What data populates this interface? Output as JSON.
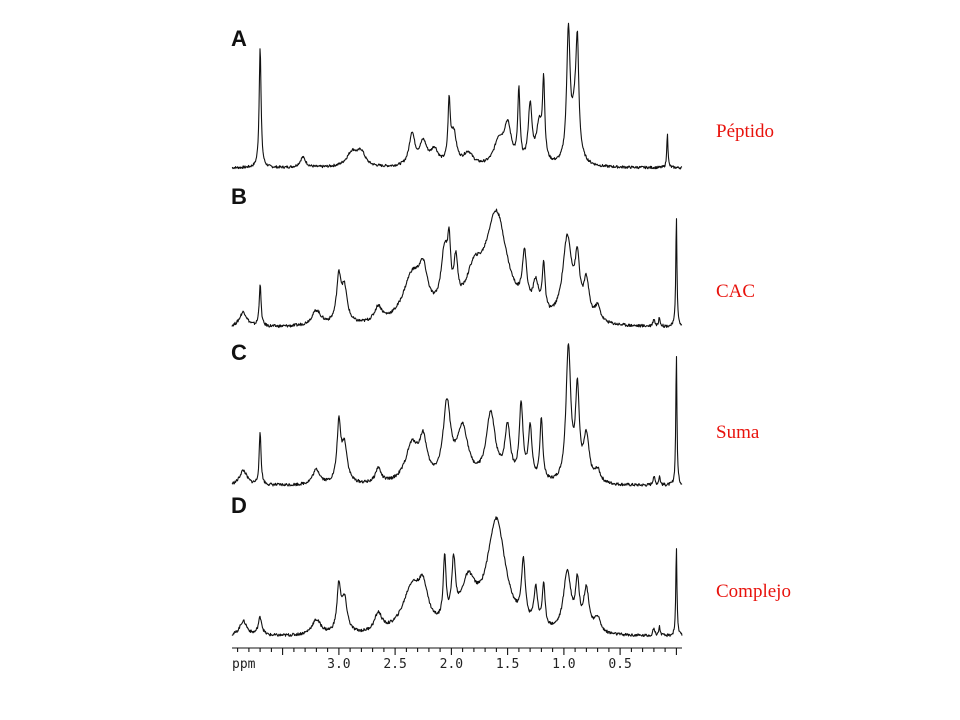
{
  "chart_data": {
    "type": "line",
    "x_unit": "ppm",
    "x_tick_labels": [
      "ppm",
      "3.0",
      "2.5",
      "2.0",
      "1.5",
      "1.0",
      "0.5"
    ],
    "x_ticks": [
      3.0,
      2.5,
      2.0,
      1.5,
      1.0,
      0.5
    ],
    "xlim": [
      3.95,
      -0.05
    ],
    "x_reversed": true,
    "grid": false,
    "panels": [
      {
        "letter": "A",
        "label": "Péptido",
        "peaks": [
          {
            "ppm": 3.7,
            "height": 0.95,
            "width": 0.01
          },
          {
            "ppm": 3.32,
            "height": 0.08,
            "width": 0.03
          },
          {
            "ppm": 2.88,
            "height": 0.12,
            "width": 0.06
          },
          {
            "ppm": 2.8,
            "height": 0.1,
            "width": 0.04
          },
          {
            "ppm": 2.35,
            "height": 0.25,
            "width": 0.03
          },
          {
            "ppm": 2.25,
            "height": 0.18,
            "width": 0.04
          },
          {
            "ppm": 2.15,
            "height": 0.12,
            "width": 0.04
          },
          {
            "ppm": 2.02,
            "height": 0.45,
            "width": 0.012
          },
          {
            "ppm": 1.98,
            "height": 0.25,
            "width": 0.03
          },
          {
            "ppm": 1.85,
            "height": 0.1,
            "width": 0.05
          },
          {
            "ppm": 1.58,
            "height": 0.18,
            "width": 0.05
          },
          {
            "ppm": 1.5,
            "height": 0.3,
            "width": 0.04
          },
          {
            "ppm": 1.4,
            "height": 0.55,
            "width": 0.012
          },
          {
            "ppm": 1.3,
            "height": 0.45,
            "width": 0.02
          },
          {
            "ppm": 1.22,
            "height": 0.3,
            "width": 0.03
          },
          {
            "ppm": 1.18,
            "height": 0.6,
            "width": 0.012
          },
          {
            "ppm": 0.96,
            "height": 1.0,
            "width": 0.018
          },
          {
            "ppm": 0.88,
            "height": 0.72,
            "width": 0.014
          },
          {
            "ppm": 0.9,
            "height": 0.4,
            "width": 0.035
          },
          {
            "ppm": 0.08,
            "height": 0.28,
            "width": 0.006
          }
        ],
        "baseline_slope": 0.0
      },
      {
        "letter": "B",
        "label": "CAC",
        "peaks": [
          {
            "ppm": 3.7,
            "height": 0.28,
            "width": 0.01
          },
          {
            "ppm": 3.85,
            "height": 0.1,
            "width": 0.04
          },
          {
            "ppm": 3.2,
            "height": 0.1,
            "width": 0.05
          },
          {
            "ppm": 3.0,
            "height": 0.3,
            "width": 0.025
          },
          {
            "ppm": 2.95,
            "height": 0.22,
            "width": 0.03
          },
          {
            "ppm": 2.65,
            "height": 0.1,
            "width": 0.04
          },
          {
            "ppm": 2.35,
            "height": 0.3,
            "width": 0.1
          },
          {
            "ppm": 2.25,
            "height": 0.25,
            "width": 0.05
          },
          {
            "ppm": 2.06,
            "height": 0.4,
            "width": 0.04
          },
          {
            "ppm": 2.02,
            "height": 0.32,
            "width": 0.015
          },
          {
            "ppm": 1.96,
            "height": 0.28,
            "width": 0.02
          },
          {
            "ppm": 1.8,
            "height": 0.25,
            "width": 0.09
          },
          {
            "ppm": 1.6,
            "height": 0.72,
            "width": 0.12
          },
          {
            "ppm": 1.35,
            "height": 0.35,
            "width": 0.025
          },
          {
            "ppm": 1.25,
            "height": 0.2,
            "width": 0.03
          },
          {
            "ppm": 1.18,
            "height": 0.32,
            "width": 0.015
          },
          {
            "ppm": 0.97,
            "height": 0.55,
            "width": 0.05
          },
          {
            "ppm": 0.88,
            "height": 0.35,
            "width": 0.025
          },
          {
            "ppm": 0.8,
            "height": 0.25,
            "width": 0.03
          },
          {
            "ppm": 0.7,
            "height": 0.1,
            "width": 0.03
          },
          {
            "ppm": 0.2,
            "height": 0.05,
            "width": 0.01
          },
          {
            "ppm": 0.15,
            "height": 0.06,
            "width": 0.008
          },
          {
            "ppm": 0.0,
            "height": 0.75,
            "width": 0.006
          }
        ],
        "baseline_slope": 0.0
      },
      {
        "letter": "C",
        "label": "Suma",
        "peaks": [
          {
            "ppm": 3.7,
            "height": 0.35,
            "width": 0.01
          },
          {
            "ppm": 3.85,
            "height": 0.1,
            "width": 0.04
          },
          {
            "ppm": 3.2,
            "height": 0.1,
            "width": 0.04
          },
          {
            "ppm": 3.0,
            "height": 0.38,
            "width": 0.02
          },
          {
            "ppm": 2.95,
            "height": 0.25,
            "width": 0.03
          },
          {
            "ppm": 2.65,
            "height": 0.1,
            "width": 0.03
          },
          {
            "ppm": 2.35,
            "height": 0.25,
            "width": 0.07
          },
          {
            "ppm": 2.25,
            "height": 0.25,
            "width": 0.04
          },
          {
            "ppm": 2.04,
            "height": 0.5,
            "width": 0.04
          },
          {
            "ppm": 1.9,
            "height": 0.35,
            "width": 0.06
          },
          {
            "ppm": 1.65,
            "height": 0.45,
            "width": 0.05
          },
          {
            "ppm": 1.5,
            "height": 0.35,
            "width": 0.03
          },
          {
            "ppm": 1.38,
            "height": 0.5,
            "width": 0.02
          },
          {
            "ppm": 1.3,
            "height": 0.35,
            "width": 0.02
          },
          {
            "ppm": 1.2,
            "height": 0.42,
            "width": 0.015
          },
          {
            "ppm": 0.96,
            "height": 0.9,
            "width": 0.025
          },
          {
            "ppm": 0.88,
            "height": 0.6,
            "width": 0.02
          },
          {
            "ppm": 0.8,
            "height": 0.3,
            "width": 0.03
          },
          {
            "ppm": 0.7,
            "height": 0.08,
            "width": 0.03
          },
          {
            "ppm": 0.2,
            "height": 0.06,
            "width": 0.01
          },
          {
            "ppm": 0.15,
            "height": 0.06,
            "width": 0.008
          },
          {
            "ppm": 0.0,
            "height": 0.88,
            "width": 0.006
          }
        ],
        "baseline_slope": 0.0
      },
      {
        "letter": "D",
        "label": "Complejo",
        "peaks": [
          {
            "ppm": 3.7,
            "height": 0.12,
            "width": 0.02
          },
          {
            "ppm": 3.85,
            "height": 0.1,
            "width": 0.04
          },
          {
            "ppm": 3.2,
            "height": 0.1,
            "width": 0.05
          },
          {
            "ppm": 3.0,
            "height": 0.3,
            "width": 0.02
          },
          {
            "ppm": 2.95,
            "height": 0.22,
            "width": 0.03
          },
          {
            "ppm": 2.65,
            "height": 0.12,
            "width": 0.04
          },
          {
            "ppm": 2.35,
            "height": 0.3,
            "width": 0.1
          },
          {
            "ppm": 2.25,
            "height": 0.22,
            "width": 0.05
          },
          {
            "ppm": 2.06,
            "height": 0.42,
            "width": 0.015
          },
          {
            "ppm": 1.98,
            "height": 0.38,
            "width": 0.02
          },
          {
            "ppm": 1.85,
            "height": 0.3,
            "width": 0.08
          },
          {
            "ppm": 1.6,
            "height": 0.75,
            "width": 0.1
          },
          {
            "ppm": 1.36,
            "height": 0.4,
            "width": 0.02
          },
          {
            "ppm": 1.25,
            "height": 0.25,
            "width": 0.02
          },
          {
            "ppm": 1.18,
            "height": 0.28,
            "width": 0.015
          },
          {
            "ppm": 0.97,
            "height": 0.4,
            "width": 0.04
          },
          {
            "ppm": 0.88,
            "height": 0.3,
            "width": 0.02
          },
          {
            "ppm": 0.8,
            "height": 0.28,
            "width": 0.03
          },
          {
            "ppm": 0.7,
            "height": 0.1,
            "width": 0.03
          },
          {
            "ppm": 0.2,
            "height": 0.05,
            "width": 0.01
          },
          {
            "ppm": 0.15,
            "height": 0.06,
            "width": 0.008
          },
          {
            "ppm": 0.0,
            "height": 0.6,
            "width": 0.006
          }
        ],
        "baseline_slope": 0.0
      }
    ]
  },
  "colors": {
    "trace": "#111111",
    "side_label": "#e8120c",
    "background": "#ffffff"
  }
}
